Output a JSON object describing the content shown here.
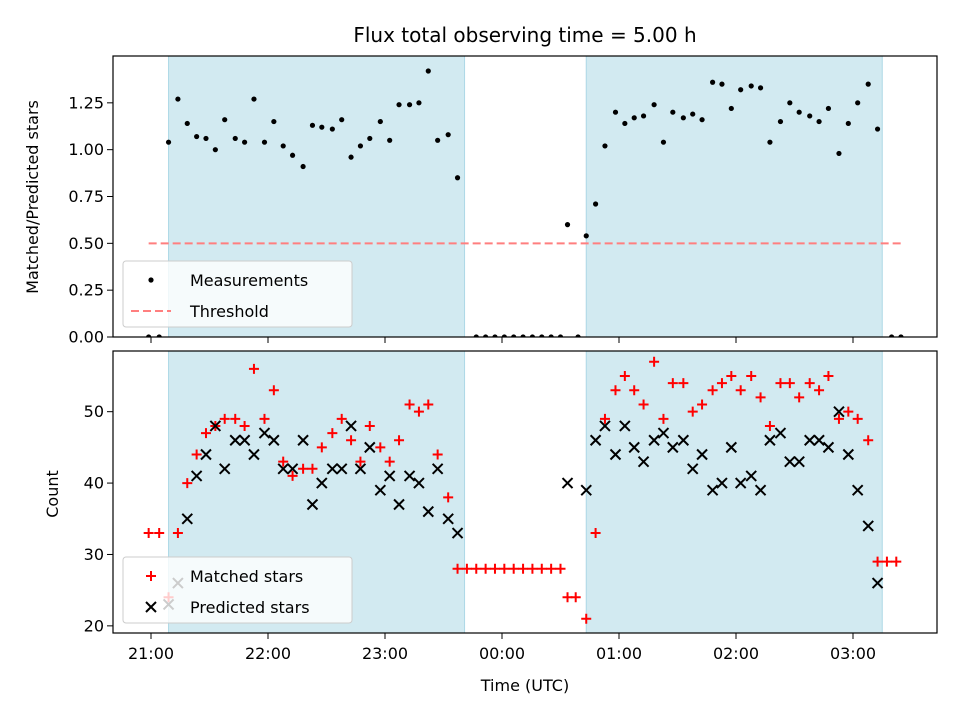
{
  "chart_data": [
    {
      "type": "scatter",
      "title": "Flux total observing time = 5.00 h",
      "xlabel": "",
      "ylabel": "Matched/Predicted stars",
      "ylim": [
        0,
        1.5
      ],
      "yticks": [
        "0.00",
        "0.25",
        "0.50",
        "0.75",
        "1.00",
        "1.25"
      ],
      "x_unit": "hours after 21:00 UTC",
      "shaded_intervals": [
        [
          0.15,
          2.68
        ],
        [
          3.72,
          6.25
        ]
      ],
      "shade_color": "#add8e6",
      "grid": false,
      "legend": "lower-left",
      "series": [
        {
          "name": "Measurements",
          "marker": "dot",
          "color": "#000000",
          "points": [
            [
              -0.02,
              0.0
            ],
            [
              0.07,
              0.0
            ],
            [
              0.15,
              1.04
            ],
            [
              0.23,
              1.27
            ],
            [
              0.31,
              1.14
            ],
            [
              0.39,
              1.07
            ],
            [
              0.47,
              1.06
            ],
            [
              0.55,
              1.0
            ],
            [
              0.63,
              1.16
            ],
            [
              0.72,
              1.06
            ],
            [
              0.8,
              1.04
            ],
            [
              0.88,
              1.27
            ],
            [
              0.97,
              1.04
            ],
            [
              1.05,
              1.15
            ],
            [
              1.13,
              1.02
            ],
            [
              1.21,
              0.97
            ],
            [
              1.3,
              0.91
            ],
            [
              1.38,
              1.13
            ],
            [
              1.46,
              1.12
            ],
            [
              1.55,
              1.11
            ],
            [
              1.63,
              1.16
            ],
            [
              1.71,
              0.96
            ],
            [
              1.79,
              1.02
            ],
            [
              1.87,
              1.06
            ],
            [
              1.96,
              1.15
            ],
            [
              2.04,
              1.05
            ],
            [
              2.12,
              1.24
            ],
            [
              2.21,
              1.24
            ],
            [
              2.29,
              1.25
            ],
            [
              2.37,
              1.42
            ],
            [
              2.45,
              1.05
            ],
            [
              2.54,
              1.08
            ],
            [
              2.62,
              0.85
            ],
            [
              2.78,
              0.0
            ],
            [
              2.86,
              0.0
            ],
            [
              2.94,
              0.0
            ],
            [
              3.02,
              0.0
            ],
            [
              3.1,
              0.0
            ],
            [
              3.18,
              0.0
            ],
            [
              3.26,
              0.0
            ],
            [
              3.34,
              0.0
            ],
            [
              3.42,
              0.0
            ],
            [
              3.5,
              0.0
            ],
            [
              3.56,
              0.6
            ],
            [
              3.65,
              0.0
            ],
            [
              3.72,
              0.54
            ],
            [
              3.8,
              0.71
            ],
            [
              3.88,
              1.02
            ],
            [
              3.97,
              1.2
            ],
            [
              4.05,
              1.14
            ],
            [
              4.13,
              1.17
            ],
            [
              4.21,
              1.18
            ],
            [
              4.3,
              1.24
            ],
            [
              4.38,
              1.04
            ],
            [
              4.46,
              1.2
            ],
            [
              4.55,
              1.17
            ],
            [
              4.63,
              1.19
            ],
            [
              4.71,
              1.16
            ],
            [
              4.8,
              1.36
            ],
            [
              4.88,
              1.35
            ],
            [
              4.96,
              1.22
            ],
            [
              5.04,
              1.32
            ],
            [
              5.13,
              1.34
            ],
            [
              5.21,
              1.33
            ],
            [
              5.29,
              1.04
            ],
            [
              5.38,
              1.15
            ],
            [
              5.46,
              1.25
            ],
            [
              5.54,
              1.2
            ],
            [
              5.63,
              1.18
            ],
            [
              5.71,
              1.15
            ],
            [
              5.79,
              1.22
            ],
            [
              5.88,
              0.98
            ],
            [
              5.96,
              1.14
            ],
            [
              6.04,
              1.25
            ],
            [
              6.13,
              1.35
            ],
            [
              6.21,
              1.11
            ],
            [
              6.33,
              0.0
            ],
            [
              6.41,
              0.0
            ]
          ]
        },
        {
          "name": "Threshold",
          "style": "dashed",
          "color": "#ff7f7f",
          "points": [
            [
              -0.02,
              0.5
            ],
            [
              6.41,
              0.5
            ]
          ]
        }
      ]
    },
    {
      "type": "scatter",
      "title": "",
      "xlabel": "Time (UTC)",
      "ylabel": "Count",
      "ylim": [
        19,
        58.5
      ],
      "yticks": [
        "20",
        "30",
        "40",
        "50"
      ],
      "xticks": [
        {
          "value": 0,
          "label": "21:00"
        },
        {
          "value": 1,
          "label": "22:00"
        },
        {
          "value": 2,
          "label": "23:00"
        },
        {
          "value": 3,
          "label": "00:00"
        },
        {
          "value": 4,
          "label": "01:00"
        },
        {
          "value": 5,
          "label": "02:00"
        },
        {
          "value": 6,
          "label": "03:00"
        }
      ],
      "shaded_intervals": [
        [
          0.15,
          2.68
        ],
        [
          3.72,
          6.25
        ]
      ],
      "shade_color": "#add8e6",
      "grid": false,
      "legend": "lower-left",
      "series": [
        {
          "name": "Matched stars",
          "marker": "plus",
          "color": "#ff0000",
          "points": [
            [
              -0.02,
              33
            ],
            [
              0.07,
              33
            ],
            [
              0.15,
              24
            ],
            [
              0.23,
              33
            ],
            [
              0.31,
              40
            ],
            [
              0.39,
              44
            ],
            [
              0.47,
              47
            ],
            [
              0.55,
              48
            ],
            [
              0.63,
              49
            ],
            [
              0.72,
              49
            ],
            [
              0.8,
              48
            ],
            [
              0.88,
              56
            ],
            [
              0.97,
              49
            ],
            [
              1.05,
              53
            ],
            [
              1.13,
              43
            ],
            [
              1.21,
              41
            ],
            [
              1.3,
              42
            ],
            [
              1.38,
              42
            ],
            [
              1.46,
              45
            ],
            [
              1.55,
              47
            ],
            [
              1.63,
              49
            ],
            [
              1.71,
              46
            ],
            [
              1.79,
              43
            ],
            [
              1.87,
              48
            ],
            [
              1.96,
              45
            ],
            [
              2.04,
              43
            ],
            [
              2.12,
              46
            ],
            [
              2.21,
              51
            ],
            [
              2.29,
              50
            ],
            [
              2.37,
              51
            ],
            [
              2.45,
              44
            ],
            [
              2.54,
              38
            ],
            [
              2.62,
              28
            ],
            [
              2.7,
              28
            ],
            [
              2.78,
              28
            ],
            [
              2.86,
              28
            ],
            [
              2.94,
              28
            ],
            [
              3.02,
              28
            ],
            [
              3.1,
              28
            ],
            [
              3.18,
              28
            ],
            [
              3.26,
              28
            ],
            [
              3.34,
              28
            ],
            [
              3.42,
              28
            ],
            [
              3.5,
              28
            ],
            [
              3.56,
              24
            ],
            [
              3.63,
              24
            ],
            [
              3.72,
              21
            ],
            [
              3.8,
              33
            ],
            [
              3.88,
              49
            ],
            [
              3.97,
              53
            ],
            [
              4.05,
              55
            ],
            [
              4.13,
              53
            ],
            [
              4.21,
              51
            ],
            [
              4.3,
              57
            ],
            [
              4.38,
              49
            ],
            [
              4.46,
              54
            ],
            [
              4.55,
              54
            ],
            [
              4.63,
              50
            ],
            [
              4.71,
              51
            ],
            [
              4.8,
              53
            ],
            [
              4.88,
              54
            ],
            [
              4.96,
              55
            ],
            [
              5.04,
              53
            ],
            [
              5.13,
              55
            ],
            [
              5.21,
              52
            ],
            [
              5.29,
              48
            ],
            [
              5.38,
              54
            ],
            [
              5.46,
              54
            ],
            [
              5.54,
              52
            ],
            [
              5.63,
              54
            ],
            [
              5.71,
              53
            ],
            [
              5.79,
              55
            ],
            [
              5.88,
              49
            ],
            [
              5.96,
              50
            ],
            [
              6.04,
              49
            ],
            [
              6.13,
              46
            ],
            [
              6.21,
              29
            ],
            [
              6.29,
              29
            ],
            [
              6.37,
              29
            ]
          ]
        },
        {
          "name": "Predicted stars",
          "marker": "x",
          "color": "#000000",
          "points": [
            [
              0.15,
              23
            ],
            [
              0.23,
              26
            ],
            [
              0.31,
              35
            ],
            [
              0.39,
              41
            ],
            [
              0.47,
              44
            ],
            [
              0.55,
              48
            ],
            [
              0.63,
              42
            ],
            [
              0.72,
              46
            ],
            [
              0.8,
              46
            ],
            [
              0.88,
              44
            ],
            [
              0.97,
              47
            ],
            [
              1.05,
              46
            ],
            [
              1.13,
              42
            ],
            [
              1.21,
              42
            ],
            [
              1.3,
              46
            ],
            [
              1.38,
              37
            ],
            [
              1.46,
              40
            ],
            [
              1.55,
              42
            ],
            [
              1.63,
              42
            ],
            [
              1.71,
              48
            ],
            [
              1.79,
              42
            ],
            [
              1.87,
              45
            ],
            [
              1.96,
              39
            ],
            [
              2.04,
              41
            ],
            [
              2.12,
              37
            ],
            [
              2.21,
              41
            ],
            [
              2.29,
              40
            ],
            [
              2.37,
              36
            ],
            [
              2.45,
              42
            ],
            [
              2.54,
              35
            ],
            [
              2.62,
              33
            ],
            [
              3.56,
              40
            ],
            [
              3.72,
              39
            ],
            [
              3.8,
              46
            ],
            [
              3.88,
              48
            ],
            [
              3.97,
              44
            ],
            [
              4.05,
              48
            ],
            [
              4.13,
              45
            ],
            [
              4.21,
              43
            ],
            [
              4.3,
              46
            ],
            [
              4.38,
              47
            ],
            [
              4.46,
              45
            ],
            [
              4.55,
              46
            ],
            [
              4.63,
              42
            ],
            [
              4.71,
              44
            ],
            [
              4.8,
              39
            ],
            [
              4.88,
              40
            ],
            [
              4.96,
              45
            ],
            [
              5.04,
              40
            ],
            [
              5.13,
              41
            ],
            [
              5.21,
              39
            ],
            [
              5.29,
              46
            ],
            [
              5.38,
              47
            ],
            [
              5.46,
              43
            ],
            [
              5.54,
              43
            ],
            [
              5.63,
              46
            ],
            [
              5.71,
              46
            ],
            [
              5.79,
              45
            ],
            [
              5.88,
              50
            ],
            [
              5.96,
              44
            ],
            [
              6.04,
              39
            ],
            [
              6.13,
              34
            ],
            [
              6.21,
              26
            ]
          ]
        }
      ]
    }
  ]
}
